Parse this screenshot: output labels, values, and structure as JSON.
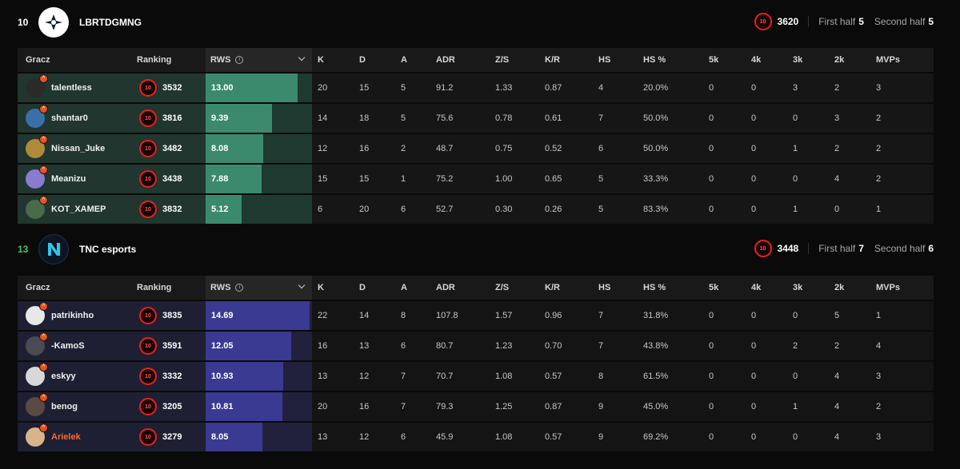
{
  "teams": [
    {
      "score": "10",
      "name": "LBRTDGMNG",
      "elo": "3620",
      "first_half_label": "First half",
      "first_half": "5",
      "second_half_label": "Second half",
      "second_half": "5",
      "win": false,
      "colors": {
        "row": "#20362e",
        "fill": "#3c8a6d"
      }
    },
    {
      "score": "13",
      "name": "TNC esports",
      "elo": "3448",
      "first_half_label": "First half",
      "first_half": "7",
      "second_half_label": "Second half",
      "second_half": "6",
      "win": true,
      "colors": {
        "row": "#1f1f34",
        "fill": "#3a3a92"
      }
    }
  ],
  "columns": [
    "Gracz",
    "Ranking",
    "RWS",
    "K",
    "D",
    "A",
    "ADR",
    "Z/S",
    "K/R",
    "HS",
    "HS %",
    "5k",
    "4k",
    "3k",
    "2k",
    "MVPs"
  ],
  "elo_icon_text": "10",
  "rws_max": 15.0,
  "players": [
    [
      {
        "name": "talentless",
        "elo": "3532",
        "rws": "13.00",
        "rws_num": 13.0,
        "stats": [
          "20",
          "15",
          "5",
          "91.2",
          "1.33",
          "0.87",
          "4",
          "20.0%",
          "0",
          "0",
          "3",
          "2",
          "3"
        ],
        "avatar": "#2a2a2a",
        "orange": false
      },
      {
        "name": "shantar0",
        "elo": "3816",
        "rws": "9.39",
        "rws_num": 9.39,
        "stats": [
          "14",
          "18",
          "5",
          "75.6",
          "0.78",
          "0.61",
          "7",
          "50.0%",
          "0",
          "0",
          "0",
          "3",
          "2"
        ],
        "avatar": "#3a6fa8",
        "orange": false
      },
      {
        "name": "Nissan_Juke",
        "elo": "3482",
        "rws": "8.08",
        "rws_num": 8.08,
        "stats": [
          "12",
          "16",
          "2",
          "48.7",
          "0.75",
          "0.52",
          "6",
          "50.0%",
          "0",
          "0",
          "1",
          "2",
          "2"
        ],
        "avatar": "#b08a3a",
        "orange": false
      },
      {
        "name": "Meanizu",
        "elo": "3438",
        "rws": "7.88",
        "rws_num": 7.88,
        "stats": [
          "15",
          "15",
          "1",
          "75.2",
          "1.00",
          "0.65",
          "5",
          "33.3%",
          "0",
          "0",
          "0",
          "4",
          "2"
        ],
        "avatar": "#8a7ad0",
        "orange": false
      },
      {
        "name": "KOT_XAMEP",
        "elo": "3832",
        "rws": "5.12",
        "rws_num": 5.12,
        "stats": [
          "6",
          "20",
          "6",
          "52.7",
          "0.30",
          "0.26",
          "5",
          "83.3%",
          "0",
          "0",
          "1",
          "0",
          "1"
        ],
        "avatar": "#4a6a4a",
        "orange": false
      }
    ],
    [
      {
        "name": "patrikinho",
        "elo": "3835",
        "rws": "14.69",
        "rws_num": 14.69,
        "stats": [
          "22",
          "14",
          "8",
          "107.8",
          "1.57",
          "0.96",
          "7",
          "31.8%",
          "0",
          "0",
          "0",
          "5",
          "1"
        ],
        "avatar": "#e8e8e8",
        "orange": false
      },
      {
        "name": "-KamoS",
        "elo": "3591",
        "rws": "12.05",
        "rws_num": 12.05,
        "stats": [
          "16",
          "13",
          "6",
          "80.7",
          "1.23",
          "0.70",
          "7",
          "43.8%",
          "0",
          "0",
          "2",
          "2",
          "4"
        ],
        "avatar": "#4a4a52",
        "orange": false
      },
      {
        "name": "eskyy",
        "elo": "3332",
        "rws": "10.93",
        "rws_num": 10.93,
        "stats": [
          "13",
          "12",
          "7",
          "70.7",
          "1.08",
          "0.57",
          "8",
          "61.5%",
          "0",
          "0",
          "0",
          "4",
          "3"
        ],
        "avatar": "#d8d8d8",
        "orange": false
      },
      {
        "name": "benog",
        "elo": "3205",
        "rws": "10.81",
        "rws_num": 10.81,
        "stats": [
          "20",
          "16",
          "7",
          "79.3",
          "1.25",
          "0.87",
          "9",
          "45.0%",
          "0",
          "0",
          "1",
          "4",
          "2"
        ],
        "avatar": "#5a4a44",
        "orange": false
      },
      {
        "name": "Arielek",
        "elo": "3279",
        "rws": "8.05",
        "rws_num": 8.05,
        "stats": [
          "13",
          "12",
          "6",
          "45.9",
          "1.08",
          "0.57",
          "9",
          "69.2%",
          "0",
          "0",
          "0",
          "4",
          "3"
        ],
        "avatar": "#d8b48a",
        "orange": true
      }
    ]
  ]
}
